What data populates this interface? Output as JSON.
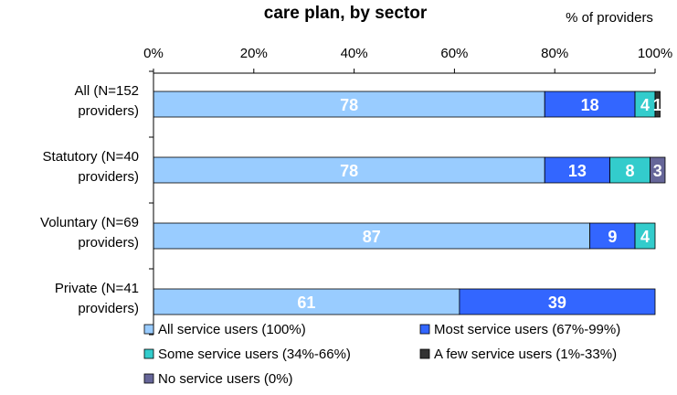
{
  "chart_data": {
    "type": "bar",
    "orientation": "horizontal",
    "stacked": true,
    "title": "care plan, by sector",
    "units_label": "% of providers",
    "xlim": [
      0,
      100
    ],
    "x_ticks": [
      "0%",
      "20%",
      "40%",
      "60%",
      "80%",
      "100%"
    ],
    "x_tick_values": [
      0,
      20,
      40,
      60,
      80,
      100
    ],
    "categories": [
      [
        "All (N=152",
        "providers)"
      ],
      [
        "Statutory (N=40",
        "providers)"
      ],
      [
        "Voluntary (N=69",
        "providers)"
      ],
      [
        "Private (N=41",
        "providers)"
      ]
    ],
    "series": [
      {
        "name": "All service users (100%)",
        "color": "#99ccff",
        "values": [
          78,
          78,
          87,
          61
        ]
      },
      {
        "name": "Most service users (67%-99%)",
        "color": "#3366ff",
        "values": [
          18,
          13,
          9,
          39
        ]
      },
      {
        "name": "Some service users (34%-66%)",
        "color": "#33cccc",
        "values": [
          4,
          8,
          4,
          0
        ]
      },
      {
        "name": "A few service users (1%-33%)",
        "color": "#333333",
        "values": [
          1,
          0,
          0,
          0
        ]
      },
      {
        "name": "No service users (0%)",
        "color": "#666699",
        "values": [
          0,
          3,
          0,
          0
        ]
      }
    ],
    "data_labels": [
      [
        "78",
        "18",
        "4",
        "1",
        ""
      ],
      [
        "78",
        "13",
        "8",
        "",
        "3"
      ],
      [
        "87",
        "9",
        "4",
        "",
        ""
      ],
      [
        "61",
        "39",
        "",
        "",
        ""
      ]
    ],
    "grid": false,
    "legend_position": "bottom"
  }
}
